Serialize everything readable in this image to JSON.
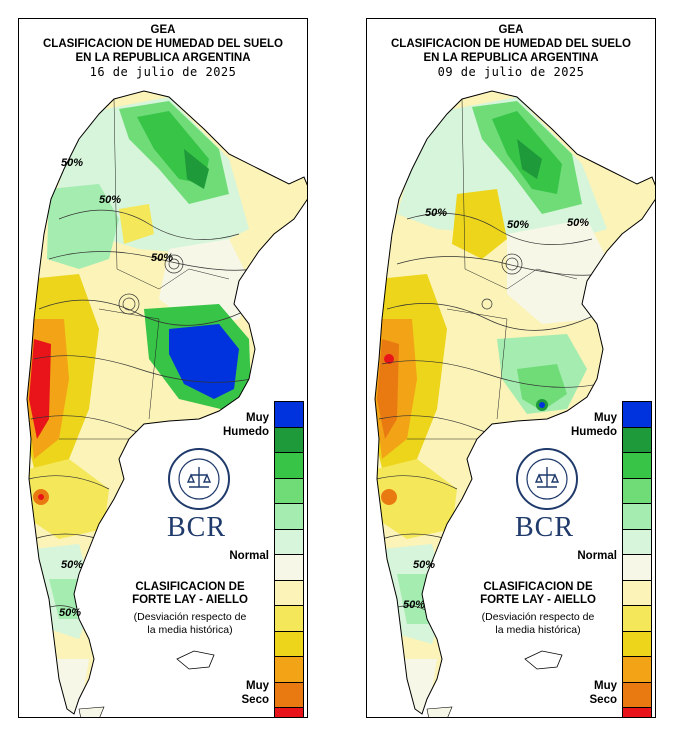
{
  "panels": [
    {
      "id": "left",
      "header_line1": "GEA",
      "header_line2": "CLASIFICACION DE HUMEDAD DEL SUELO",
      "header_line3": "EN LA REPUBLICA ARGENTINA",
      "date": "16 de julio de 2025",
      "isolines": [
        "50%",
        "50%",
        "50%",
        "50%",
        "50%"
      ]
    },
    {
      "id": "right",
      "header_line1": "GEA",
      "header_line2": "CLASIFICACION DE HUMEDAD DEL SUELO",
      "header_line3": "EN LA REPUBLICA ARGENTINA",
      "date": "09 de julio de 2025",
      "isolines": [
        "50%",
        "50%",
        "50%",
        "50%",
        "50%"
      ]
    }
  ],
  "legend": {
    "top_label_1": "Muy",
    "top_label_2": "Humedo",
    "mid_label": "Normal",
    "bottom_label_1": "Muy",
    "bottom_label_2": "Seco",
    "colors": [
      "#0033dd",
      "#1f9a3a",
      "#37c447",
      "#6fdc78",
      "#a4ecb0",
      "#d6f5da",
      "#f7f7e8",
      "#fbf3b8",
      "#f4e85a",
      "#ecd51a",
      "#f2a416",
      "#e97a12",
      "#e8141a"
    ]
  },
  "classification_line1": "CLASIFICACION DE",
  "classification_line2": "FORTE LAY - AIELLO",
  "note_line1": "(Desviación respecto de",
  "note_line2": "la media histórica)",
  "logo_text": "BCR",
  "logo_seal_text": "BOLSA DE COMERCIO DE ROSARIO"
}
